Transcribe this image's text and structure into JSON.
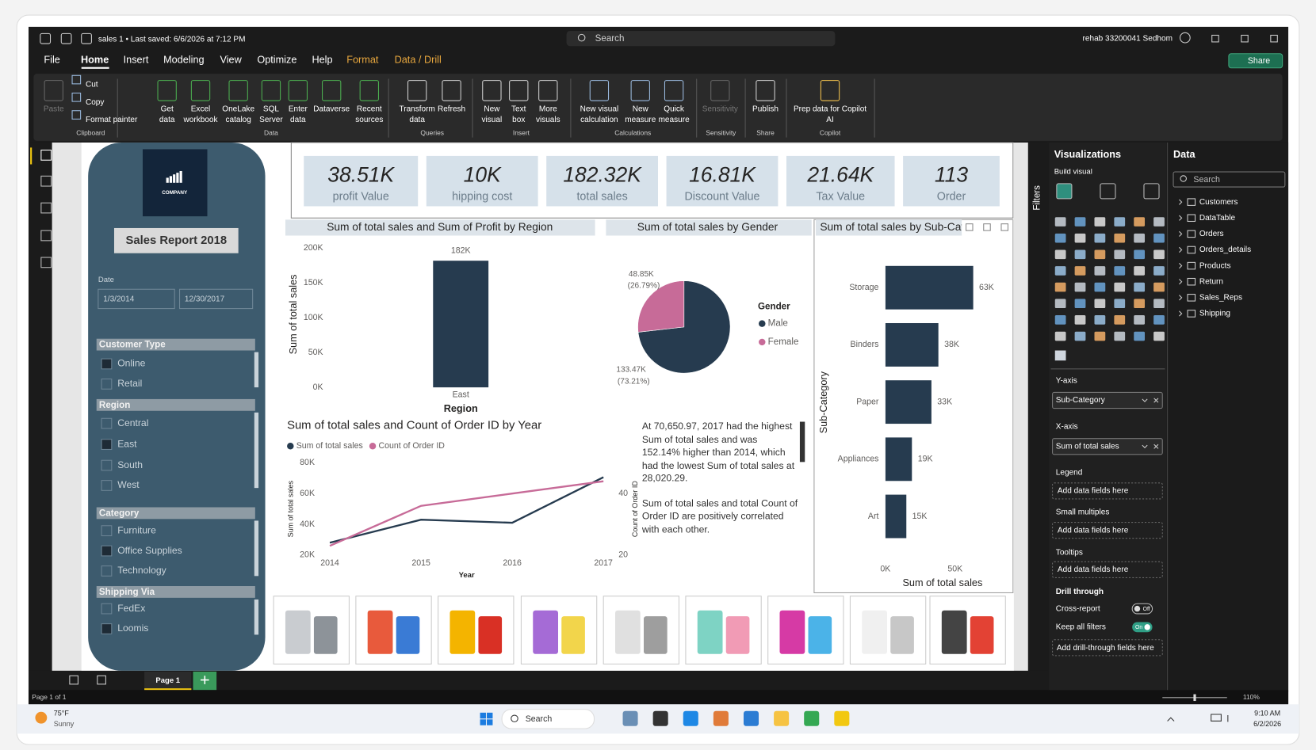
{
  "title_bar": {
    "file_status": "sales 1 • Last saved: 6/6/2026 at 7:12 PM",
    "search": "Search",
    "user": "rehab 33200041 Sedhom"
  },
  "menu": {
    "tabs": [
      "File",
      "Home",
      "Insert",
      "Modeling",
      "View",
      "Optimize",
      "Help",
      "Format",
      "Data / Drill"
    ],
    "share": "Share"
  },
  "ribbon": {
    "groups": [
      {
        "label": "Clipboard",
        "buttons": [
          [
            "Paste"
          ],
          [
            "Cut"
          ],
          [
            "Copy"
          ],
          [
            "Format painter"
          ]
        ]
      },
      {
        "label": "Data",
        "buttons": [
          [
            "Get",
            "data"
          ],
          [
            "Excel",
            "workbook"
          ],
          [
            "OneLake",
            "catalog"
          ],
          [
            "SQL",
            "Server"
          ],
          [
            "Enter",
            "data"
          ],
          [
            "Dataverse"
          ],
          [
            "Recent",
            "sources"
          ]
        ]
      },
      {
        "label": "Queries",
        "buttons": [
          [
            "Transform",
            "data"
          ],
          [
            "Refresh"
          ]
        ]
      },
      {
        "label": "Insert",
        "buttons": [
          [
            "New",
            "visual"
          ],
          [
            "Text",
            "box"
          ],
          [
            "More",
            "visuals"
          ]
        ]
      },
      {
        "label": "Calculations",
        "buttons": [
          [
            "New visual",
            "calculation"
          ],
          [
            "New",
            "measure"
          ],
          [
            "Quick",
            "measure"
          ]
        ]
      },
      {
        "label": "Sensitivity",
        "buttons": [
          [
            "Sensitivity"
          ]
        ]
      },
      {
        "label": "Share",
        "buttons": [
          [
            "Publish"
          ]
        ]
      },
      {
        "label": "Copilot",
        "buttons": [
          [
            "Prep data for Copilot",
            "AI"
          ]
        ]
      }
    ]
  },
  "report": {
    "slicer_panel": {
      "logo_text": "COMPANY",
      "title": "Sales Report 2018",
      "date_label": "Date",
      "date_from": "1/3/2014",
      "date_to": "12/30/2017",
      "slicers": [
        {
          "title": "Customer Type",
          "options": [
            "Online",
            "Retail"
          ],
          "checked": [
            true,
            false
          ]
        },
        {
          "title": "Region",
          "options": [
            "Central",
            "East",
            "South",
            "West"
          ],
          "checked": [
            false,
            true,
            false,
            false
          ]
        },
        {
          "title": "Category",
          "options": [
            "Furniture",
            "Office Supplies",
            "Technology"
          ],
          "checked": [
            false,
            true,
            false
          ]
        },
        {
          "title": "Shipping Via",
          "options": [
            "FedEx",
            "Loomis"
          ],
          "checked": [
            false,
            true
          ]
        }
      ]
    },
    "kpis": [
      {
        "value": "38.51K",
        "label": "profit Value"
      },
      {
        "value": "10K",
        "label": "hipping cost"
      },
      {
        "value": "182.32K",
        "label": "total sales"
      },
      {
        "value": "16.81K",
        "label": "Discount Value"
      },
      {
        "value": "21.64K",
        "label": "Tax Value"
      },
      {
        "value": "113",
        "label": "Order"
      }
    ],
    "narrative": [
      "At 70,650.97, 2017 had the highest Sum of total sales and was 152.14% higher than 2014, which had the lowest Sum of total sales at 28,020.29.",
      "Sum of total sales and total Count of Order ID are positively correlated with each other."
    ],
    "page_tab": "Page 1"
  },
  "chart_data": [
    {
      "type": "bar",
      "title": "Sum of total sales and Sum of Profit by Region",
      "categories": [
        "East"
      ],
      "values": [
        182000
      ],
      "value_labels": [
        "182K"
      ],
      "color": "#263b4f",
      "ylim": [
        0,
        200000
      ],
      "yticks": [
        {
          "value": 0,
          "label": "0K"
        },
        {
          "value": 50000,
          "label": "50K"
        },
        {
          "value": 100000,
          "label": "100K"
        },
        {
          "value": 150000,
          "label": "150K"
        },
        {
          "value": 200000,
          "label": "200K"
        }
      ],
      "ylabel": "Sum of total sales",
      "xlabel": "Region"
    },
    {
      "type": "pie",
      "title": "Sum of total sales by Gender",
      "legend_title": "Gender",
      "categories": [
        "Male",
        "Female"
      ],
      "values": [
        133470,
        48850
      ],
      "value_labels": [
        "133.47K",
        "48.85K"
      ],
      "percent_labels": [
        "(73.21%)",
        "(26.79%)"
      ],
      "colors": [
        "#263b4f",
        "#c76b98"
      ]
    },
    {
      "type": "line",
      "title": "Sum of total sales and Count of Order ID by Year",
      "x": [
        2014,
        2015,
        2016,
        2017
      ],
      "xlim": [
        2014,
        2017
      ],
      "xticks": [
        2014,
        2015,
        2016,
        2017
      ],
      "series": [
        {
          "name": "Sum of total sales",
          "color": "#263b4f",
          "values": [
            28020.29,
            43000,
            41000,
            70650.97
          ]
        },
        {
          "name": "Count of Order ID",
          "color": "#c76b98",
          "axis": "y2",
          "values": [
            23,
            36,
            40,
            44
          ]
        }
      ],
      "ylim": [
        20000,
        80000
      ],
      "yticks": [
        {
          "value": 20000,
          "label": "20K"
        },
        {
          "value": 40000,
          "label": "40K"
        },
        {
          "value": 60000,
          "label": "60K"
        },
        {
          "value": 80000,
          "label": "80K"
        }
      ],
      "y2lim": [
        20,
        50
      ],
      "y2ticks": [
        20,
        40
      ],
      "ylabel": "Sum of total sales",
      "y2label": "Count of Order ID",
      "xlabel": "Year"
    },
    {
      "type": "bar",
      "orientation": "horizontal",
      "title": "Sum of total sales by Sub-Category",
      "categories": [
        "Storage",
        "Binders",
        "Paper",
        "Appliances",
        "Art"
      ],
      "values": [
        63000,
        38000,
        33000,
        19000,
        15000
      ],
      "value_labels": [
        "63K",
        "38K",
        "33K",
        "19K",
        "15K"
      ],
      "color": "#263b4f",
      "xlim": [
        0,
        90000
      ],
      "xticks": [
        {
          "value": 0,
          "label": "0K"
        },
        {
          "value": 50000,
          "label": "50K"
        }
      ],
      "ylabel": "Sub-Category",
      "xlabel": "Sum of total sales"
    }
  ],
  "status_bar": {
    "page": "Page 1 of 1",
    "zoom": "110%"
  },
  "filters_pane": {
    "title": "Filters"
  },
  "visualizations_pane": {
    "title": "Visualizations",
    "subtitle": "Build visual",
    "wells": [
      {
        "label": "Y-axis",
        "field": "Sub-Category"
      },
      {
        "label": "X-axis",
        "field": "Sum of total sales"
      },
      {
        "label": "Legend",
        "placeholder": "Add data fields here"
      },
      {
        "label": "Small multiples",
        "placeholder": "Add data fields here"
      },
      {
        "label": "Tooltips",
        "placeholder": "Add data fields here"
      }
    ],
    "drill_through": {
      "title": "Drill through",
      "cross_report": "Cross-report",
      "cross_report_state": "Off",
      "keep_filters": "Keep all filters",
      "keep_filters_state": "On",
      "placeholder": "Add drill-through fields here"
    }
  },
  "data_pane": {
    "title": "Data",
    "search": "Search",
    "tables": [
      "Customers",
      "DataTable",
      "Orders",
      "Orders_details",
      "Products",
      "Return",
      "Sales_Reps",
      "Shipping"
    ]
  },
  "taskbar": {
    "temperature": "75°F",
    "weather": "Sunny",
    "search": "Search",
    "time": "9:10 AM",
    "date": "6/2/2026"
  }
}
